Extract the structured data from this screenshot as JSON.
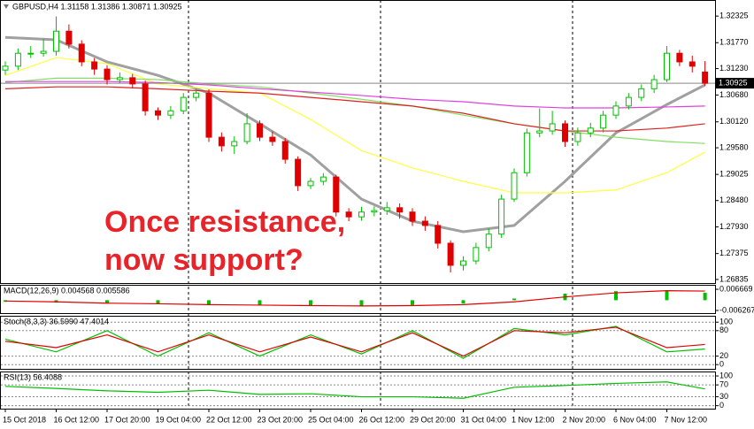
{
  "chart_data": [
    {
      "type": "candlestick",
      "title": "GBPUSD,H4  1.31158 1.31386 1.30871 1.30925",
      "annotation": [
        "Once resistance,",
        "now support?"
      ],
      "up_color": "#00c000",
      "down_color": "#e00000",
      "open": [
        1.312,
        1.3128,
        1.3155,
        1.3155,
        1.3159,
        1.3201,
        1.3174,
        1.3137,
        1.3122,
        1.31,
        1.3104,
        1.3091,
        1.3035,
        1.3026,
        1.3035,
        1.3063,
        1.3072,
        1.298,
        1.2962,
        1.2971,
        1.3008,
        1.298,
        1.2971,
        1.2934,
        1.2879,
        1.2888,
        1.2897,
        1.2824,
        1.2814,
        1.2824,
        1.2827,
        1.2833,
        1.2824,
        1.2805,
        1.2796,
        1.2759,
        1.2713,
        1.2722,
        1.275,
        1.2778,
        1.2851,
        1.2906,
        1.2989,
        1.2993,
        1.3008,
        1.2971,
        1.2989,
        1.2999,
        1.3026,
        1.3045,
        1.3063,
        1.3081,
        1.31,
        1.3155,
        1.3137,
        1.31158
      ],
      "high": [
        1.3138,
        1.3165,
        1.317,
        1.3185,
        1.3232,
        1.3215,
        1.3182,
        1.3145,
        1.313,
        1.3115,
        1.3112,
        1.3098,
        1.3042,
        1.3045,
        1.3072,
        1.3082,
        1.308,
        1.299,
        1.2982,
        1.303,
        1.3015,
        1.2992,
        1.2978,
        1.294,
        1.2895,
        1.2905,
        1.2902,
        1.2832,
        1.2835,
        1.2836,
        1.2845,
        1.2842,
        1.2832,
        1.2815,
        1.2805,
        1.2765,
        1.2732,
        1.276,
        1.279,
        1.286,
        1.2915,
        1.2998,
        1.304,
        1.3035,
        1.3015,
        1.3,
        1.301,
        1.3035,
        1.3055,
        1.3072,
        1.309,
        1.311,
        1.317,
        1.3162,
        1.315,
        1.31386
      ],
      "low": [
        1.311,
        1.312,
        1.3145,
        1.3148,
        1.315,
        1.3165,
        1.3128,
        1.311,
        1.309,
        1.3092,
        1.3082,
        1.3025,
        1.3016,
        1.3018,
        1.3028,
        1.3055,
        1.297,
        1.295,
        1.2945,
        1.2965,
        1.2972,
        1.2962,
        1.2925,
        1.2868,
        1.2872,
        1.288,
        1.2815,
        1.2805,
        1.2806,
        1.2815,
        1.2818,
        1.281,
        1.2795,
        1.2785,
        1.2748,
        1.2698,
        1.2702,
        1.2715,
        1.2742,
        1.277,
        1.2845,
        1.2898,
        1.298,
        1.2985,
        1.296,
        1.2962,
        1.298,
        1.299,
        1.3018,
        1.3038,
        1.3055,
        1.3072,
        1.3095,
        1.3128,
        1.3115,
        1.30871
      ],
      "close": [
        1.3128,
        1.3155,
        1.3155,
        1.3159,
        1.3201,
        1.3174,
        1.3137,
        1.3122,
        1.31,
        1.3104,
        1.3091,
        1.3035,
        1.3026,
        1.3035,
        1.3063,
        1.3072,
        1.298,
        1.2962,
        1.2971,
        1.3008,
        1.298,
        1.2971,
        1.2934,
        1.2879,
        1.2888,
        1.2897,
        1.2824,
        1.2814,
        1.2824,
        1.2827,
        1.2833,
        1.2824,
        1.2805,
        1.2796,
        1.2759,
        1.2713,
        1.2722,
        1.275,
        1.2778,
        1.2851,
        1.2906,
        1.2989,
        1.2993,
        1.3008,
        1.2971,
        1.2989,
        1.2999,
        1.3026,
        1.3045,
        1.3063,
        1.3081,
        1.31,
        1.3155,
        1.3137,
        1.3128,
        1.30925
      ],
      "overlay_x": [
        0,
        4,
        8,
        12,
        16,
        20,
        24,
        28,
        32,
        36,
        40,
        44,
        48,
        52,
        55
      ],
      "overlays": [
        {
          "color": "#a0a0a0",
          "values": [
            1.3188,
            1.3183,
            1.3137,
            1.3109,
            1.3072,
            1.3008,
            1.2943,
            1.2851,
            1.2805,
            1.2783,
            1.2796,
            1.2888,
            1.2989,
            1.3048,
            1.3089
          ]
        },
        {
          "color": "#ffff40",
          "values": [
            1.3109,
            1.3146,
            1.3133,
            1.3091,
            1.3081,
            1.3072,
            1.3017,
            1.2952,
            1.2916,
            1.2888,
            1.2864,
            1.2864,
            1.287,
            1.2906,
            1.2949
          ]
        },
        {
          "color": "#80e060",
          "values": [
            1.3094,
            1.3103,
            1.3103,
            1.31,
            1.3091,
            1.3085,
            1.3072,
            1.3059,
            1.3045,
            1.3026,
            1.3008,
            1.2993,
            1.298,
            1.2971,
            1.2967
          ]
        },
        {
          "color": "#e02020",
          "values": [
            1.3081,
            1.3085,
            1.3085,
            1.3081,
            1.3076,
            1.3072,
            1.3063,
            1.3054,
            1.3045,
            1.303,
            1.3008,
            1.2993,
            1.2993,
            1.2999,
            1.3008
          ]
        },
        {
          "color": "#e040e0",
          "values": [
            1.3096,
            1.3096,
            1.3096,
            1.3094,
            1.3089,
            1.3081,
            1.3074,
            1.3067,
            1.3059,
            1.3054,
            1.3045,
            1.3041,
            1.3041,
            1.3043,
            1.3045
          ]
        }
      ],
      "last_price": {
        "value": 1.30925,
        "label": "1.30925"
      },
      "ylim": [
        1.2676,
        1.3266
      ],
      "yticks": [
        1.32325,
        {
          "value": 1.3177,
          "label": "1.31770"
        },
        {
          "value": 1.3123,
          "label": "1.31230"
        },
        {
          "value": 1.3068,
          "label": "1.30680"
        },
        {
          "value": 1.3012,
          "label": "1.30120"
        },
        {
          "value": 1.2958,
          "label": "1.29580"
        },
        1.29025,
        {
          "value": 1.2848,
          "label": "1.28480"
        },
        {
          "value": 1.2793,
          "label": "1.27930"
        },
        1.27375,
        1.26835
      ],
      "xticks": [
        {
          "value": 0,
          "label": "15 Oct 2018"
        },
        {
          "value": 4,
          "label": "16 Oct 12:00"
        },
        {
          "value": 8,
          "label": "17 Oct 20:00"
        },
        {
          "value": 12,
          "label": "19 Oct 04:00"
        },
        {
          "value": 16,
          "label": "22 Oct 12:00"
        },
        {
          "value": 20,
          "label": "23 Oct 20:00"
        },
        {
          "value": 24,
          "label": "25 Oct 04:00"
        },
        {
          "value": 28,
          "label": "26 Oct 12:00"
        },
        {
          "value": 32,
          "label": "29 Oct 20:00"
        },
        {
          "value": 36,
          "label": "31 Oct 04:00"
        },
        {
          "value": 40,
          "label": "1 Nov 12:00"
        },
        {
          "value": 44,
          "label": "2 Nov 20:00"
        },
        {
          "value": 48,
          "label": "6 Nov 04:00"
        },
        {
          "value": 52,
          "label": "7 Nov 12:00"
        }
      ]
    },
    {
      "type": "macd",
      "title": "MACD(12,26,9) 0.004568 0.005586",
      "x": [
        0,
        4,
        8,
        12,
        16,
        20,
        24,
        28,
        32,
        36,
        40,
        44,
        48,
        52,
        55
      ],
      "series": [
        {
          "color": "#00c000",
          "values": [
            -0.001,
            -0.0015,
            -0.002,
            -0.0025,
            -0.003,
            -0.003,
            -0.0035,
            -0.0035,
            -0.003,
            -0.002,
            0.001,
            0.004,
            0.0055,
            0.006,
            0.004568
          ]
        },
        {
          "color": "#e00000",
          "values": [
            -0.0005,
            -0.001,
            -0.0018,
            -0.0022,
            -0.0027,
            -0.003,
            -0.0033,
            -0.0035,
            -0.0033,
            -0.0027,
            -0.001,
            0.002,
            0.0045,
            0.0058,
            0.005586
          ]
        }
      ],
      "ylim": [
        -0.0079,
        0.0094
      ],
      "yticks": [
        0.006669,
        -0.006267
      ]
    },
    {
      "type": "line",
      "title": "Stoch(8,3,3) 36.5990 47.4014",
      "x": [
        0,
        4,
        8,
        12,
        16,
        20,
        24,
        28,
        32,
        36,
        40,
        44,
        48,
        52,
        55
      ],
      "series": [
        {
          "color": "#00c000",
          "values": [
            60,
            30,
            80,
            20,
            75,
            20,
            70,
            25,
            80,
            15,
            85,
            70,
            90,
            30,
            36.599
          ]
        },
        {
          "color": "#e00000",
          "values": [
            55,
            40,
            70,
            30,
            70,
            30,
            65,
            30,
            75,
            20,
            80,
            75,
            88,
            40,
            47.4014
          ]
        }
      ],
      "ylim": [
        -10,
        115
      ],
      "yticks": [
        100,
        80,
        20,
        0
      ],
      "grid": true
    },
    {
      "type": "line",
      "title": "RSI(13) 56.4088",
      "x": [
        0,
        4,
        8,
        12,
        16,
        20,
        24,
        28,
        32,
        36,
        40,
        44,
        48,
        52,
        55
      ],
      "series": [
        {
          "color": "#00c000",
          "values": [
            65,
            58,
            50,
            45,
            52,
            38,
            40,
            30,
            30,
            25,
            62,
            68,
            75,
            80,
            56.4088
          ]
        }
      ],
      "ylim": [
        -10,
        115
      ],
      "yticks": [
        100,
        70,
        30,
        0
      ],
      "grid": true
    }
  ]
}
